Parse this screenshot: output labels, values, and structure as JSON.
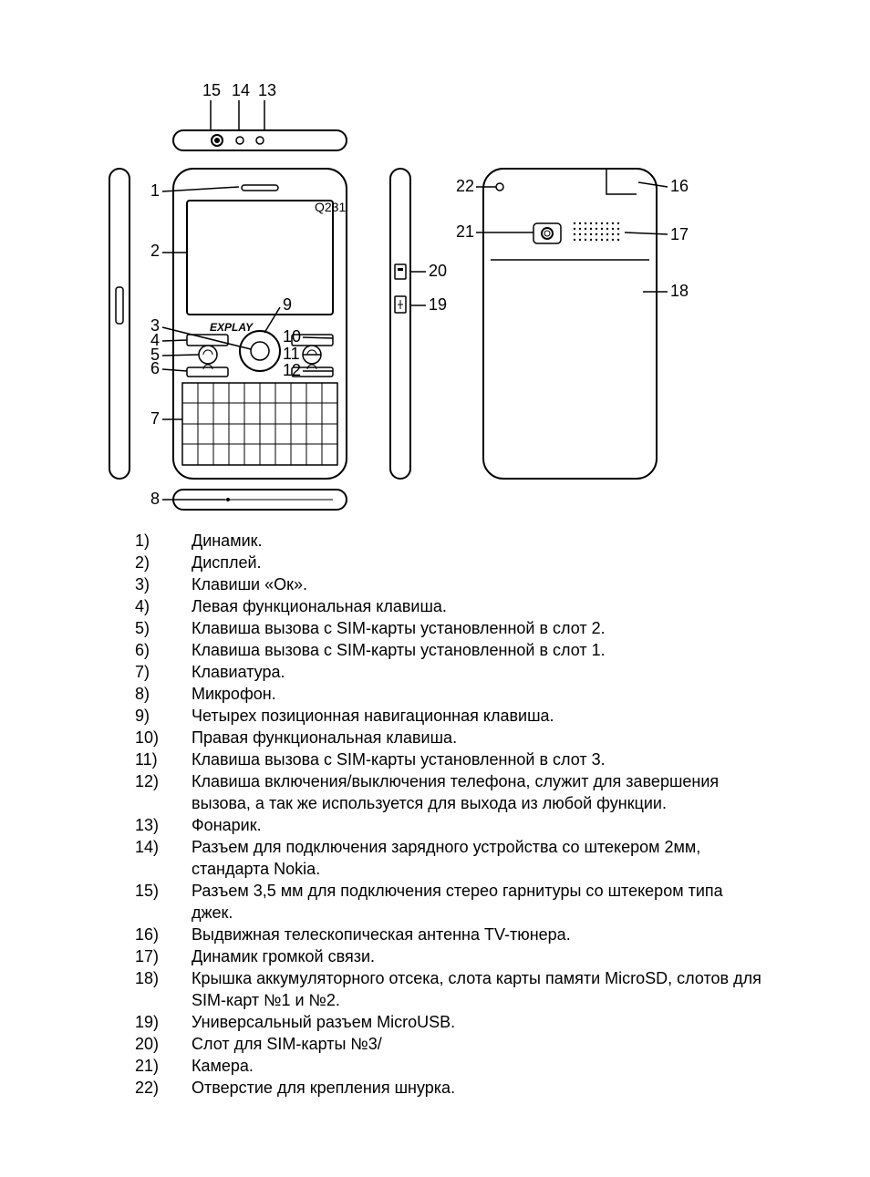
{
  "diagram": {
    "top_labels": [
      "15",
      "14",
      "13"
    ],
    "left_labels": [
      "1",
      "2",
      "3",
      "4",
      "5",
      "6",
      "7",
      "8"
    ],
    "mid_labels": [
      "9",
      "10",
      "11",
      "12"
    ],
    "side_labels": [
      "20",
      "19"
    ],
    "right_labels_top": [
      "22",
      "21"
    ],
    "right_labels_right": [
      "16",
      "17",
      "18"
    ],
    "brand": "EXPLAY",
    "model": "Q231",
    "colors": {
      "stroke": "#000000",
      "fill": "#ffffff",
      "screen_border": "#000000",
      "key_fill": "#ffffff"
    }
  },
  "list": [
    {
      "n": "1)",
      "t": "Динамик."
    },
    {
      "n": "2)",
      "t": "Дисплей."
    },
    {
      "n": "3)",
      "t": "Клавиши «Ок»."
    },
    {
      "n": "4)",
      "t": "Левая функциональная клавиша."
    },
    {
      "n": "5)",
      "t": "Клавиша вызова с SIM-карты установленной в слот 2."
    },
    {
      "n": "6)",
      "t": "Клавиша вызова с SIM-карты установленной в слот 1."
    },
    {
      "n": "7)",
      "t": "Клавиатура."
    },
    {
      "n": "8)",
      "t": "Микрофон."
    },
    {
      "n": "9)",
      "t": "Четырех позиционная навигационная клавиша."
    },
    {
      "n": "10)",
      "t": "Правая функциональная клавиша."
    },
    {
      "n": "11)",
      "t": "Клавиша вызова с SIM-карты установленной в слот 3."
    },
    {
      "n": "12)",
      "t": "Клавиша включения/выключения телефона, служит для завершения вызова, а так же используется для выхода из любой функции."
    },
    {
      "n": "13)",
      "t": "Фонарик."
    },
    {
      "n": "14)",
      "t": "Разъем для подключения зарядного устройства со штекером 2мм, стандарта Nokia."
    },
    {
      "n": "15)",
      "t": "Разъем 3,5 мм для подключения стерео гарнитуры со штекером типа джек."
    },
    {
      "n": "16)",
      "t": "Выдвижная телескопическая антенна TV-тюнера."
    },
    {
      "n": "17)",
      "t": "Динамик громкой связи."
    },
    {
      "n": "18)",
      "t": "Крышка аккумуляторного отсека, слота карты памяти MicroSD, слотов для SIM-карт №1 и №2."
    },
    {
      "n": "19)",
      "t": "Универсальный разъем MicroUSB."
    },
    {
      "n": "20)",
      "t": "Слот для SIM-карты №3/"
    },
    {
      "n": "21)",
      "t": "Камера."
    },
    {
      "n": "22)",
      "t": "Отверстие для крепления шнурка."
    }
  ]
}
